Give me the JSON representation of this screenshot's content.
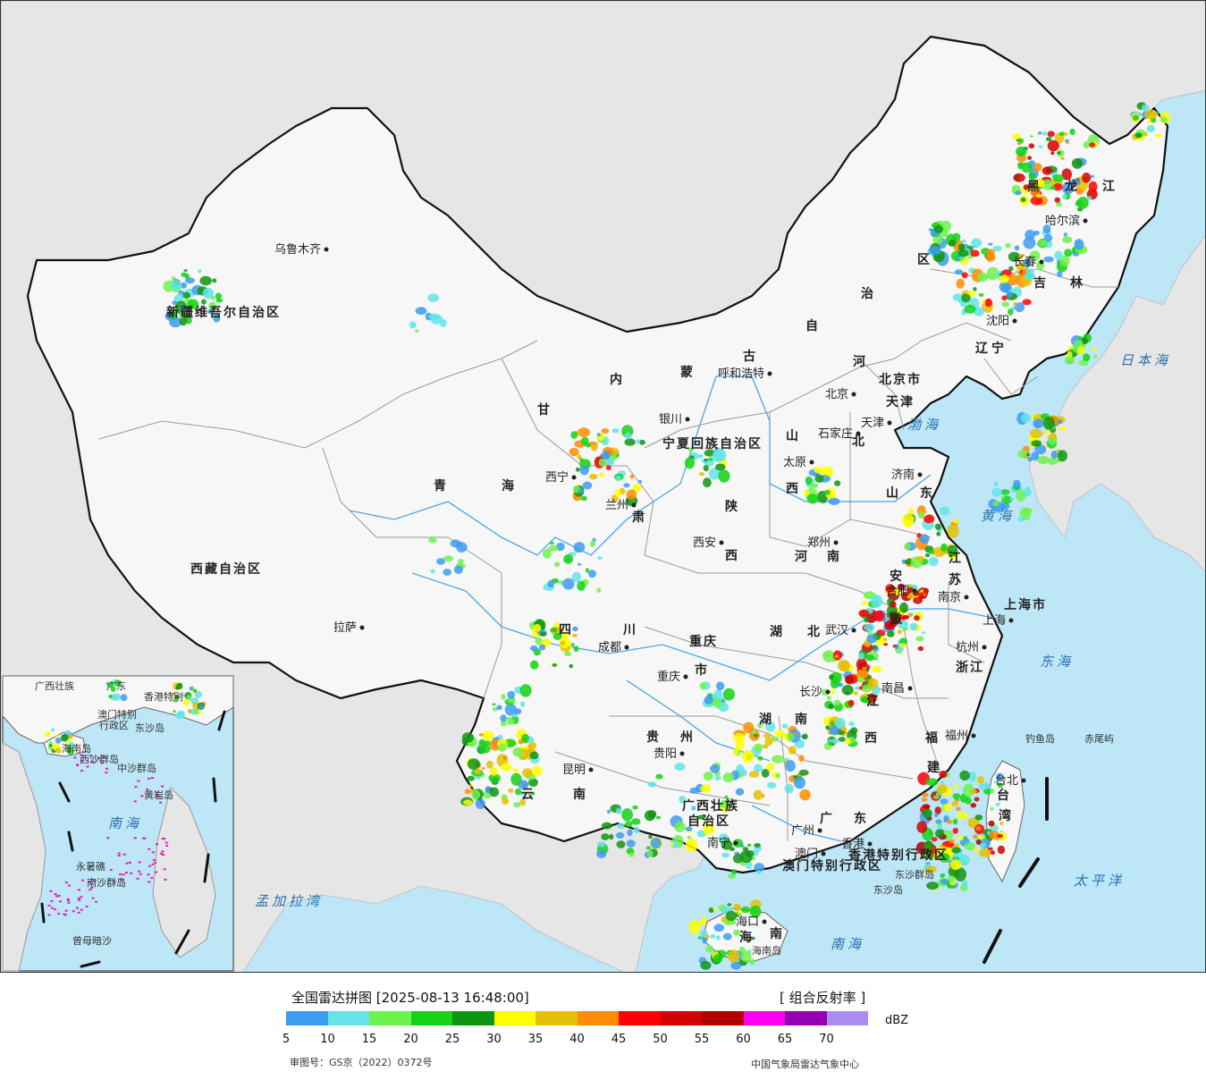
{
  "colors": {
    "sea": "#bde6f7",
    "foreign_land": "#e6e6e6",
    "china_land": "#f7f7f7",
    "border": "#111111",
    "province_line": "#9a9a9a",
    "river": "#4aa6e8"
  },
  "map": {
    "provinces": [
      {
        "id": "xinjiang",
        "label": "新疆维吾尔自治区"
      },
      {
        "id": "xizang",
        "label": "西藏自治区"
      },
      {
        "id": "qinghai1",
        "label": "青"
      },
      {
        "id": "qinghai2",
        "label": "海"
      },
      {
        "id": "gansu",
        "label": "甘"
      },
      {
        "id": "neimenggu1",
        "label": "内"
      },
      {
        "id": "neimenggu2",
        "label": "蒙"
      },
      {
        "id": "neimenggu3",
        "label": "古"
      },
      {
        "id": "neimenggu4",
        "label": "自"
      },
      {
        "id": "neimenggu5",
        "label": "治"
      },
      {
        "id": "neimenggu6",
        "label": "区"
      },
      {
        "id": "heilongjiang1",
        "label": "黑"
      },
      {
        "id": "heilongjiang2",
        "label": "龙"
      },
      {
        "id": "heilongjiang3",
        "label": "江"
      },
      {
        "id": "jilin1",
        "label": "吉"
      },
      {
        "id": "jilin2",
        "label": "林"
      },
      {
        "id": "liaoning1",
        "label": "辽"
      },
      {
        "id": "liaoning2",
        "label": "宁"
      },
      {
        "id": "hebei1",
        "label": "河"
      },
      {
        "id": "hebei2",
        "label": "北"
      },
      {
        "id": "shanxi1",
        "label": "山"
      },
      {
        "id": "shanxi2",
        "label": "西"
      },
      {
        "id": "shandong1",
        "label": "山"
      },
      {
        "id": "shandong2",
        "label": "东"
      },
      {
        "id": "shaanxi1",
        "label": "陕"
      },
      {
        "id": "shaanxi2",
        "label": "西"
      },
      {
        "id": "henan1",
        "label": "河"
      },
      {
        "id": "henan2",
        "label": "南"
      },
      {
        "id": "jiangsu1",
        "label": "江"
      },
      {
        "id": "jiangsu2",
        "label": "苏"
      },
      {
        "id": "anhui1",
        "label": "安"
      },
      {
        "id": "anhui2",
        "label": "徽"
      },
      {
        "id": "shanghai",
        "label": "上海市"
      },
      {
        "id": "zhejiang",
        "label": "浙江"
      },
      {
        "id": "sichuan1",
        "label": "四"
      },
      {
        "id": "sichuan2",
        "label": "川"
      },
      {
        "id": "chongqing1",
        "label": "重庆"
      },
      {
        "id": "chongqing2",
        "label": "市"
      },
      {
        "id": "hubei1",
        "label": "湖"
      },
      {
        "id": "hubei2",
        "label": "北"
      },
      {
        "id": "hunan1",
        "label": "湖"
      },
      {
        "id": "hunan2",
        "label": "南"
      },
      {
        "id": "jiangxi1",
        "label": "江"
      },
      {
        "id": "jiangxi2",
        "label": "西"
      },
      {
        "id": "fujian1",
        "label": "福"
      },
      {
        "id": "fujian2",
        "label": "建"
      },
      {
        "id": "guizhou1",
        "label": "贵"
      },
      {
        "id": "guizhou2",
        "label": "州"
      },
      {
        "id": "yunnan1",
        "label": "云"
      },
      {
        "id": "yunnan2",
        "label": "南"
      },
      {
        "id": "guangxi1",
        "label": "广西壮族"
      },
      {
        "id": "guangxi2",
        "label": "自治区"
      },
      {
        "id": "guangdong1",
        "label": "广"
      },
      {
        "id": "guangdong2",
        "label": "东"
      },
      {
        "id": "taiwan1",
        "label": "台"
      },
      {
        "id": "taiwan2",
        "label": "湾"
      },
      {
        "id": "hainan1",
        "label": "海"
      },
      {
        "id": "hainan2",
        "label": "南"
      },
      {
        "id": "hk",
        "label": "香港特别行政区"
      },
      {
        "id": "macau",
        "label": "澳门特别行政区"
      },
      {
        "id": "ningxia",
        "label": "宁夏回族自治区"
      },
      {
        "id": "gansu2",
        "label": "肃"
      },
      {
        "id": "beijing",
        "label": "北京市"
      },
      {
        "id": "tianjin",
        "label": "天津"
      }
    ],
    "cities": [
      {
        "id": "urumqi",
        "label": "乌鲁木齐"
      },
      {
        "id": "lhasa",
        "label": "拉萨"
      },
      {
        "id": "xining",
        "label": "西宁"
      },
      {
        "id": "lanzhou",
        "label": "兰州"
      },
      {
        "id": "yinchuan",
        "label": "银川"
      },
      {
        "id": "hohhot",
        "label": "呼和浩特"
      },
      {
        "id": "beijing",
        "label": "北京"
      },
      {
        "id": "tianjin",
        "label": "天津"
      },
      {
        "id": "shijiazhuang",
        "label": "石家庄"
      },
      {
        "id": "taiyuan",
        "label": "太原"
      },
      {
        "id": "jinan",
        "label": "济南"
      },
      {
        "id": "zhengzhou",
        "label": "郑州"
      },
      {
        "id": "xian",
        "label": "西安"
      },
      {
        "id": "harbin",
        "label": "哈尔滨"
      },
      {
        "id": "changchun",
        "label": "长春"
      },
      {
        "id": "shenyang",
        "label": "沈阳"
      },
      {
        "id": "nanjing",
        "label": "南京"
      },
      {
        "id": "hefei",
        "label": "合肥"
      },
      {
        "id": "shanghai",
        "label": "上海"
      },
      {
        "id": "hangzhou",
        "label": "杭州"
      },
      {
        "id": "wuhan",
        "label": "武汉"
      },
      {
        "id": "nanchang",
        "label": "南昌"
      },
      {
        "id": "changsha",
        "label": "长沙"
      },
      {
        "id": "fuzhou",
        "label": "福州"
      },
      {
        "id": "taipei",
        "label": "台北"
      },
      {
        "id": "chengdu",
        "label": "成都"
      },
      {
        "id": "chongqing",
        "label": "重庆"
      },
      {
        "id": "guiyang",
        "label": "贵阳"
      },
      {
        "id": "kunming",
        "label": "昆明"
      },
      {
        "id": "nanning",
        "label": "南宁"
      },
      {
        "id": "guangzhou",
        "label": "广州"
      },
      {
        "id": "hongkong",
        "label": "香港"
      },
      {
        "id": "macau",
        "label": "澳门"
      },
      {
        "id": "haikou",
        "label": "海口"
      }
    ],
    "seas": [
      {
        "id": "bohai",
        "label": "渤海"
      },
      {
        "id": "huanghai",
        "label": "黄海"
      },
      {
        "id": "donghai",
        "label": "东海"
      },
      {
        "id": "nanhai",
        "label": "南海"
      },
      {
        "id": "riben",
        "label": "日本海"
      },
      {
        "id": "taipingyang",
        "label": "太平洋"
      },
      {
        "id": "mengjiala",
        "label": "孟加拉湾"
      }
    ],
    "islands": [
      {
        "id": "diaoyu",
        "label": "钓鱼岛"
      },
      {
        "id": "chiwei",
        "label": "赤尾屿"
      },
      {
        "id": "dongsha1",
        "label": "东沙群岛"
      },
      {
        "id": "dongsha2",
        "label": "东沙岛"
      },
      {
        "id": "hainan_dao",
        "label": "海南岛"
      }
    ],
    "inset": {
      "labels": [
        {
          "id": "inset-gx",
          "label": "广西壮族"
        },
        {
          "id": "inset-gd",
          "label": "广东"
        },
        {
          "id": "inset-hk",
          "label": "香港特别"
        },
        {
          "id": "inset-mo1",
          "label": "澳门特别"
        },
        {
          "id": "inset-mo2",
          "label": "行政区"
        },
        {
          "id": "inset-dongsha",
          "label": "东沙岛"
        },
        {
          "id": "inset-hn",
          "label": "海南岛"
        },
        {
          "id": "inset-xisha",
          "label": "西沙群岛"
        },
        {
          "id": "inset-zhongsha",
          "label": "中沙群岛"
        },
        {
          "id": "inset-huangyan",
          "label": "黄岩岛"
        },
        {
          "id": "inset-nanhai",
          "label": "南海"
        },
        {
          "id": "inset-yongshu",
          "label": "永暑礁"
        },
        {
          "id": "inset-nansha",
          "label": "南沙群岛"
        },
        {
          "id": "inset-zengmu",
          "label": "曾母暗沙"
        }
      ]
    }
  },
  "legend": {
    "title": "全国雷达拼图 [2025-08-13 16:48:00]",
    "product": "[ 组合反射率 ]",
    "unit": "dBZ",
    "bins": [
      5,
      10,
      15,
      20,
      25,
      30,
      35,
      40,
      45,
      50,
      55,
      60,
      65,
      70
    ],
    "colors": [
      "#3d9cf0",
      "#62e4e8",
      "#6ef24c",
      "#14d214",
      "#109510",
      "#ffff00",
      "#e5c000",
      "#ff8c00",
      "#ff0000",
      "#d20000",
      "#b40000",
      "#ff00f5",
      "#9400b4",
      "#ab8cf0"
    ],
    "review_number": "审图号：GS京（2022）0372号",
    "agency": "中国气象局雷达气象中心"
  }
}
